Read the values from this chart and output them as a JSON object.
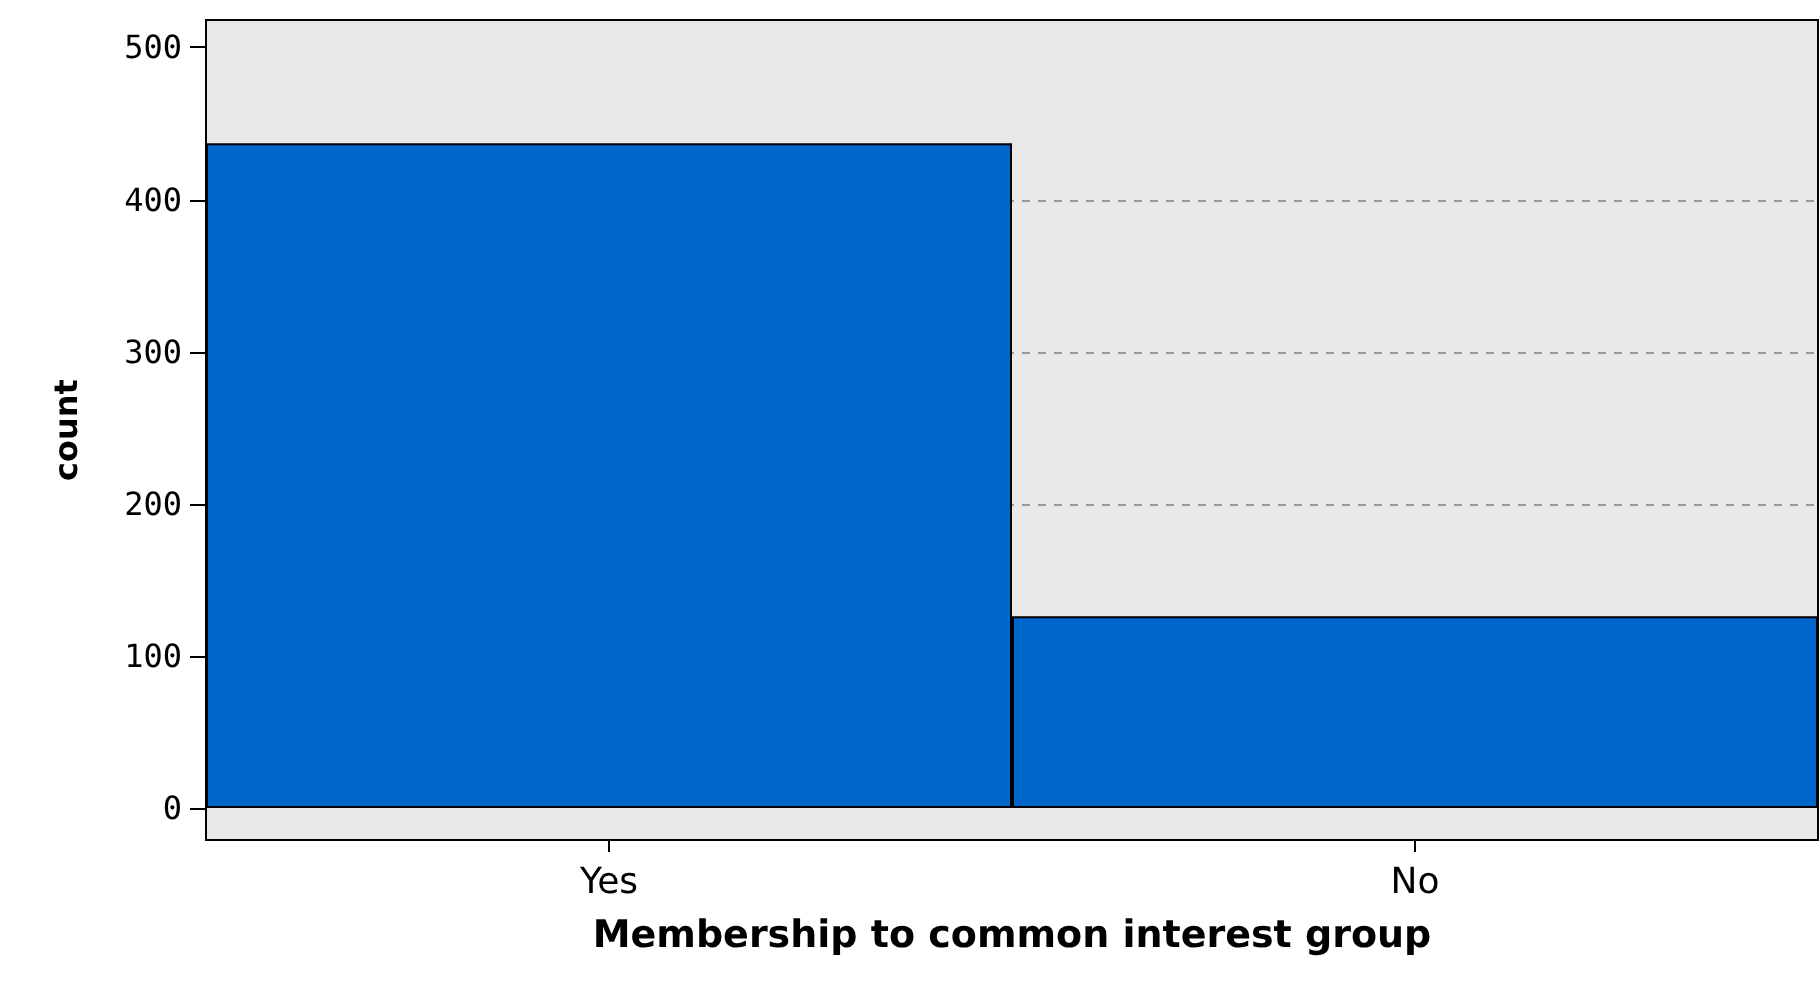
{
  "chart_data": {
    "type": "bar",
    "xlabel": "Membership to common interest group",
    "ylabel": "count",
    "categories": [
      "Yes",
      "No"
    ],
    "values": [
      437,
      126
    ],
    "color": "#0066cc",
    "ylim": [
      -21,
      518
    ],
    "yticks": [
      0,
      100,
      200,
      300,
      400,
      500
    ],
    "grid": true
  }
}
